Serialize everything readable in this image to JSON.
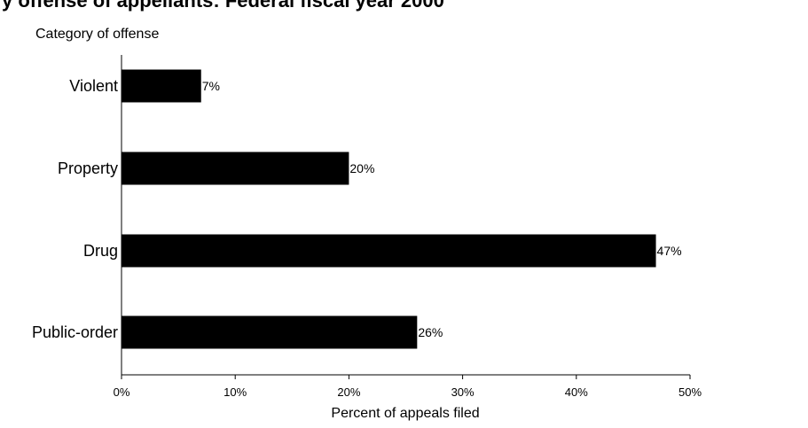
{
  "title": "y offense of appellants: Federal fiscal year 2000",
  "chart_data": {
    "type": "bar",
    "orientation": "horizontal",
    "title": "y offense of appellants: Federal fiscal year 2000",
    "ylabel": "Category of offense",
    "xlabel": "Percent of appeals filed",
    "categories": [
      "Violent",
      "Property",
      "Drug",
      "Public-order"
    ],
    "values": [
      7,
      20,
      47,
      26
    ],
    "value_labels": [
      "7%",
      "20%",
      "47%",
      "26%"
    ],
    "xlim": [
      0,
      50
    ],
    "x_ticks": [
      0,
      10,
      20,
      30,
      40,
      50
    ],
    "x_tick_labels": [
      "0%",
      "10%",
      "20%",
      "30%",
      "40%",
      "50%"
    ],
    "grid": false,
    "bar_color": "#000000"
  }
}
